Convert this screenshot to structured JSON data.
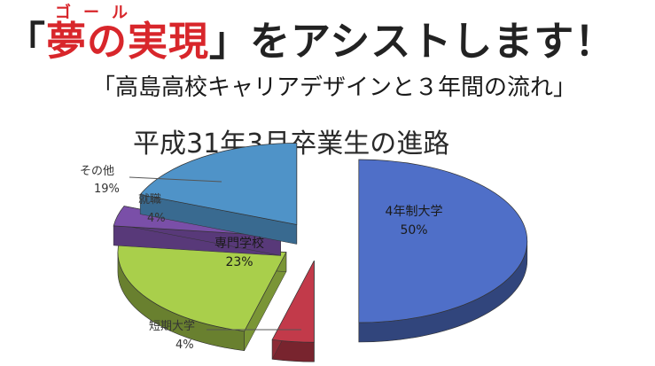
{
  "headline": {
    "open_bracket": "「",
    "red_text": "夢の実現",
    "close_bracket": "」",
    "rest": "をアシストします！",
    "ruby": "ゴール"
  },
  "subtitle": "「高島高校キャリアデザインと３年間の流れ」",
  "chart_data": {
    "type": "pie",
    "title": "平成31年3月卒業生の進路",
    "slices": [
      {
        "name": "4年制大学",
        "value": 50,
        "label": "50%",
        "color": "#4f6fc8"
      },
      {
        "name": "短期大学",
        "value": 4,
        "label": "4%",
        "color": "#c23a4a"
      },
      {
        "name": "専門学校",
        "value": 23,
        "label": "23%",
        "color": "#a9cf4b"
      },
      {
        "name": "就職",
        "value": 4,
        "label": "4%",
        "color": "#7a4fa8"
      },
      {
        "name": "その他",
        "value": 19,
        "label": "19%",
        "color": "#4f93c8"
      }
    ]
  }
}
